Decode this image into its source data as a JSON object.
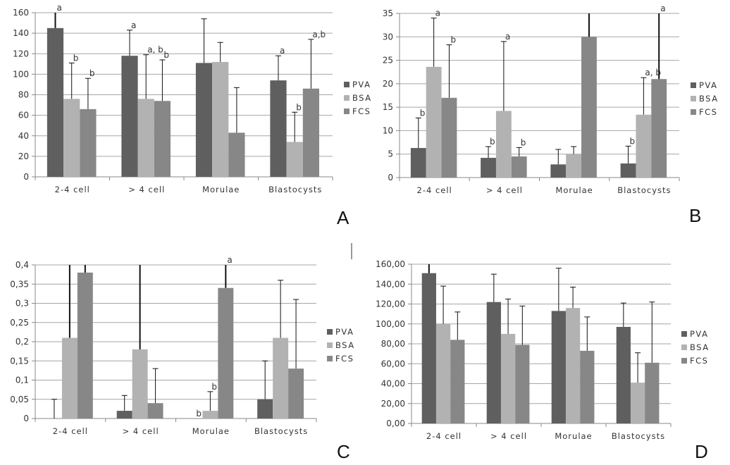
{
  "colors": {
    "PVA": "#5f5f5f",
    "BSA": "#b2b2b2",
    "FCS": "#878787",
    "grid": "#a6a6a6",
    "errorbar": "#111111"
  },
  "chart_data": [
    {
      "panel": "A",
      "type": "bar",
      "grid": true,
      "legend": "right",
      "categories": [
        "2-4 cell",
        "> 4 cell",
        "Morulae",
        "Blastocysts"
      ],
      "ylim": [
        0,
        160
      ],
      "yticks": [
        "0",
        "20",
        "40",
        "60",
        "80",
        "100",
        "120",
        "140",
        "160"
      ],
      "series": [
        {
          "name": "PVA",
          "values": [
            145,
            118,
            111,
            94
          ],
          "error_top": [
            160,
            143,
            154,
            118
          ],
          "labels": [
            "a",
            "a",
            "",
            "a"
          ]
        },
        {
          "name": "BSA",
          "values": [
            76,
            76,
            112,
            34
          ],
          "error_top": [
            111,
            119,
            131,
            63
          ],
          "labels": [
            "b",
            "a, b",
            "",
            "b"
          ]
        },
        {
          "name": "FCS",
          "values": [
            66,
            74,
            43,
            86
          ],
          "error_top": [
            96,
            114,
            87,
            134
          ],
          "labels": [
            "b",
            "b",
            "",
            "a,b"
          ]
        }
      ]
    },
    {
      "panel": "B",
      "type": "bar",
      "grid": true,
      "legend": "right",
      "categories": [
        "2-4 cell",
        "> 4 cell",
        "Morulae",
        "Blastocysts"
      ],
      "ylim": [
        0,
        35
      ],
      "yticks": [
        "0",
        "5",
        "10",
        "15",
        "20",
        "25",
        "30",
        "35"
      ],
      "series": [
        {
          "name": "PVA",
          "values": [
            6.3,
            4.2,
            2.8,
            3.0
          ],
          "error_top": [
            12.7,
            6.6,
            6.0,
            6.7
          ],
          "labels": [
            "b",
            "b",
            "",
            "b"
          ]
        },
        {
          "name": "BSA",
          "values": [
            23.6,
            14.2,
            5.0,
            13.4
          ],
          "error_top": [
            34,
            29,
            6.6,
            21.3
          ],
          "labels": [
            "a",
            "a",
            "",
            "a, b"
          ]
        },
        {
          "name": "FCS",
          "values": [
            17,
            4.5,
            30,
            21
          ],
          "error_top": [
            28.3,
            6.4,
            35,
            35
          ],
          "labels": [
            "b",
            "b",
            "",
            "a"
          ]
        }
      ]
    },
    {
      "panel": "C",
      "type": "bar",
      "grid": true,
      "legend": "right",
      "categories": [
        "2-4 cell",
        "> 4 cell",
        "Morulae",
        "Blastocysts"
      ],
      "ylim": [
        0,
        0.4
      ],
      "yticks": [
        "0",
        "0,05",
        "0,1",
        "0,15",
        "0,2",
        "0,25",
        "0,3",
        "0,35",
        "0,4"
      ],
      "series": [
        {
          "name": "PVA",
          "values": [
            0,
            0.02,
            0,
            0.05
          ],
          "error_top": [
            0.05,
            0.06,
            0,
            0.15
          ],
          "labels": [
            "",
            "",
            "b",
            ""
          ]
        },
        {
          "name": "BSA",
          "values": [
            0.21,
            0.18,
            0.02,
            0.21
          ],
          "error_top": [
            0.4,
            0.4,
            0.07,
            0.36
          ],
          "labels": [
            "",
            "",
            "b",
            ""
          ]
        },
        {
          "name": "FCS",
          "values": [
            0.38,
            0.04,
            0.34,
            0.13
          ],
          "error_top": [
            0.4,
            0.13,
            0.4,
            0.31
          ],
          "labels": [
            "",
            "",
            "a",
            ""
          ]
        }
      ]
    },
    {
      "panel": "D",
      "type": "bar",
      "grid": true,
      "legend": "right",
      "categories": [
        "2-4 cell",
        "> 4 cell",
        "Morulae",
        "Blastocysts"
      ],
      "ylim": [
        0,
        160
      ],
      "yticks": [
        "0,00",
        "20,00",
        "40,00",
        "60,00",
        "80,00",
        "100,00",
        "120,00",
        "140,00",
        "160,00"
      ],
      "series": [
        {
          "name": "PVA",
          "values": [
            151,
            122,
            113,
            97
          ],
          "error_top": [
            160,
            150,
            156,
            121
          ],
          "labels": [
            "",
            "",
            "",
            ""
          ]
        },
        {
          "name": "BSA",
          "values": [
            100,
            90,
            116,
            41
          ],
          "error_top": [
            138,
            125,
            137,
            71
          ],
          "labels": [
            "",
            "",
            "",
            ""
          ]
        },
        {
          "name": "FCS",
          "values": [
            84,
            79,
            73,
            61
          ],
          "error_top": [
            112,
            118,
            107,
            122
          ],
          "labels": [
            "",
            "",
            "",
            ""
          ]
        }
      ]
    }
  ]
}
